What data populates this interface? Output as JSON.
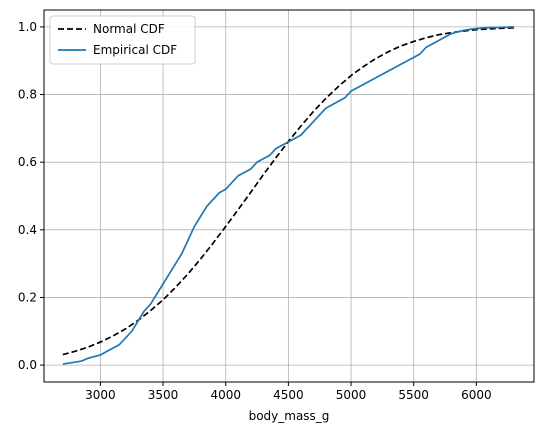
{
  "chart_data": {
    "type": "line",
    "title": "",
    "xlabel": "body_mass_g",
    "ylabel": "",
    "xlim": [
      2550,
      6460
    ],
    "ylim": [
      -0.05,
      1.05
    ],
    "x_ticks": [
      3000,
      3500,
      4000,
      4500,
      5000,
      5500,
      6000
    ],
    "y_ticks": [
      0.0,
      0.2,
      0.4,
      0.6,
      0.8,
      1.0
    ],
    "x_tick_labels": [
      "3000",
      "3500",
      "4000",
      "4500",
      "5000",
      "5500",
      "6000"
    ],
    "y_tick_labels": [
      "0.0",
      "0.2",
      "0.4",
      "0.6",
      "0.8",
      "1.0"
    ],
    "grid": true,
    "legend_position": "top-left",
    "series": [
      {
        "name": "Normal CDF",
        "style": "dashed",
        "color": "#000000",
        "x": [
          2700,
          2800,
          2900,
          3000,
          3100,
          3200,
          3300,
          3400,
          3500,
          3600,
          3700,
          3800,
          3900,
          4000,
          4100,
          4200,
          4300,
          4400,
          4500,
          4600,
          4700,
          4800,
          4900,
          5000,
          5100,
          5200,
          5300,
          5400,
          5500,
          5600,
          5700,
          5800,
          5900,
          6000,
          6100,
          6200,
          6300
        ],
        "y": [
          0.031,
          0.041,
          0.053,
          0.068,
          0.086,
          0.107,
          0.132,
          0.161,
          0.193,
          0.23,
          0.27,
          0.314,
          0.361,
          0.41,
          0.46,
          0.511,
          0.563,
          0.613,
          0.661,
          0.707,
          0.75,
          0.789,
          0.824,
          0.856,
          0.883,
          0.907,
          0.927,
          0.944,
          0.957,
          0.968,
          0.977,
          0.983,
          0.988,
          0.992,
          0.994,
          0.996,
          0.997
        ]
      },
      {
        "name": "Empirical CDF",
        "style": "solid",
        "color": "#1f77b4",
        "x": [
          2700,
          2850,
          2900,
          3000,
          3050,
          3150,
          3200,
          3250,
          3300,
          3350,
          3400,
          3450,
          3500,
          3550,
          3600,
          3650,
          3700,
          3750,
          3800,
          3850,
          3900,
          3950,
          4000,
          4050,
          4100,
          4150,
          4200,
          4250,
          4300,
          4350,
          4400,
          4450,
          4500,
          4550,
          4600,
          4650,
          4700,
          4750,
          4800,
          4900,
          4950,
          5000,
          5050,
          5100,
          5150,
          5200,
          5250,
          5300,
          5350,
          5400,
          5450,
          5500,
          5550,
          5600,
          5650,
          5700,
          5750,
          5800,
          5850,
          5900,
          5950,
          6000,
          6050,
          6100,
          6300
        ],
        "y": [
          0.003,
          0.012,
          0.02,
          0.03,
          0.04,
          0.06,
          0.08,
          0.1,
          0.13,
          0.16,
          0.18,
          0.21,
          0.24,
          0.27,
          0.3,
          0.33,
          0.37,
          0.41,
          0.44,
          0.47,
          0.49,
          0.51,
          0.52,
          0.54,
          0.56,
          0.57,
          0.58,
          0.6,
          0.61,
          0.62,
          0.64,
          0.65,
          0.66,
          0.67,
          0.68,
          0.7,
          0.72,
          0.74,
          0.76,
          0.78,
          0.79,
          0.81,
          0.82,
          0.83,
          0.84,
          0.85,
          0.86,
          0.87,
          0.88,
          0.89,
          0.9,
          0.91,
          0.92,
          0.94,
          0.95,
          0.96,
          0.97,
          0.98,
          0.985,
          0.99,
          0.993,
          0.995,
          0.997,
          0.998,
          1.0
        ]
      }
    ]
  }
}
